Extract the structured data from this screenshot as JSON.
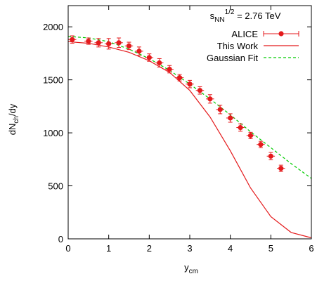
{
  "chart_data": {
    "type": "scatter",
    "title": "",
    "annotation": {
      "base": "s",
      "subscript": "NN",
      "superscript": "1/2",
      "value": " = 2.76 TeV"
    },
    "xlabel": {
      "base": "y",
      "subscript": "cm"
    },
    "ylabel": {
      "base": "dN",
      "subscript": "ch",
      "suffix": "/dy"
    },
    "xlim": [
      0,
      6
    ],
    "ylim": [
      0,
      2200
    ],
    "x_ticks": [
      "0",
      "1",
      "2",
      "3",
      "4",
      "5",
      "6"
    ],
    "y_ticks": [
      "0",
      "500",
      "1000",
      "1500",
      "2000"
    ],
    "legend_position": "top-right",
    "grid": false,
    "series": [
      {
        "name": "ALICE",
        "kind": "points-with-errorbars",
        "color": "#e41a1c",
        "x": [
          0.1,
          0.5,
          0.75,
          1.0,
          1.25,
          1.5,
          1.75,
          2.0,
          2.25,
          2.5,
          2.75,
          3.0,
          3.25,
          3.5,
          3.75,
          4.0,
          4.25,
          4.5,
          4.75,
          5.0,
          5.25
        ],
        "y": [
          1880,
          1865,
          1850,
          1840,
          1850,
          1820,
          1770,
          1710,
          1660,
          1600,
          1520,
          1460,
          1400,
          1320,
          1220,
          1140,
          1050,
          975,
          890,
          780,
          665
        ],
        "yerr": [
          35,
          30,
          40,
          50,
          45,
          35,
          40,
          35,
          40,
          35,
          30,
          35,
          35,
          40,
          40,
          40,
          35,
          30,
          30,
          35,
          30
        ],
        "xerr": [
          0.1,
          0.1,
          0.1,
          0.1,
          0.1,
          0.1,
          0.1,
          0.1,
          0.1,
          0.1,
          0.1,
          0.1,
          0.1,
          0.1,
          0.1,
          0.1,
          0.1,
          0.1,
          0.1,
          0.1,
          0.1
        ]
      },
      {
        "name": "This Work",
        "kind": "line",
        "color": "#e41a1c",
        "x": [
          0,
          0.5,
          1.0,
          1.5,
          2.0,
          2.5,
          3.0,
          3.5,
          4.0,
          4.5,
          5.0,
          5.5,
          6.0
        ],
        "y": [
          1860,
          1845,
          1810,
          1760,
          1680,
          1570,
          1400,
          1150,
          830,
          480,
          210,
          60,
          10
        ]
      },
      {
        "name": "Gaussian Fit",
        "kind": "dashed-line",
        "color": "#00cc00",
        "x": [
          0,
          0.5,
          1.0,
          1.5,
          2.0,
          2.5,
          3.0,
          3.5,
          4.0,
          4.5,
          5.0,
          5.5,
          6.0
        ],
        "y": [
          1910,
          1895,
          1860,
          1790,
          1700,
          1590,
          1460,
          1320,
          1170,
          1010,
          860,
          710,
          570
        ]
      }
    ]
  }
}
